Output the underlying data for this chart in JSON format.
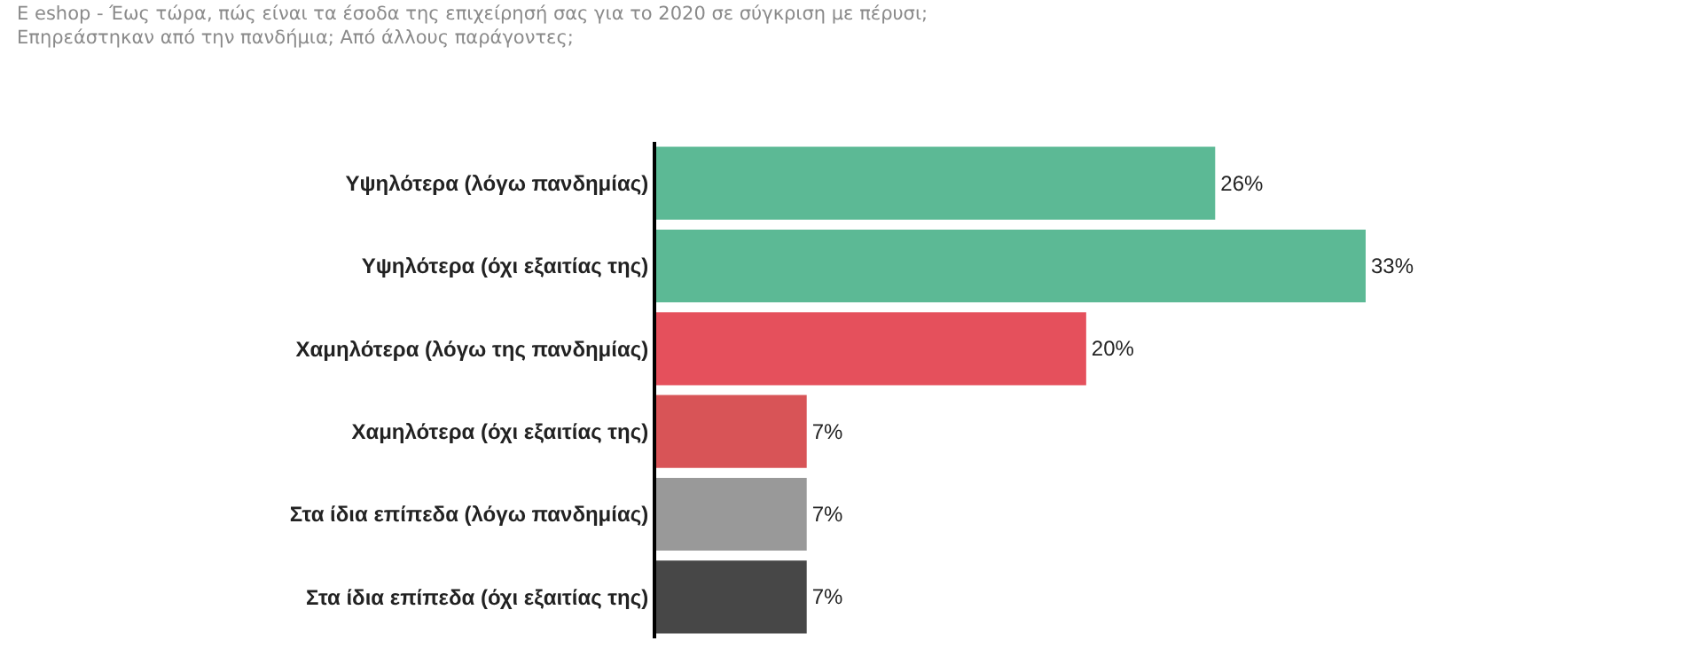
{
  "chart_data": {
    "type": "bar",
    "orientation": "horizontal",
    "title": "E eshop - Έως τώρα, πώς είναι τα έσοδα της επιχείρησή σας για το 2020 σε σύγκριση με πέρυσι;\nΕπηρεάστηκαν από την πανδήμια; Από άλλους παράγοντες;",
    "categories": [
      "Υψηλότερα (λόγω πανδημίας)",
      "Υψηλότερα (όχι εξαιτίας της)",
      "Χαμηλότερα (λόγω της πανδημίας)",
      "Χαμηλότερα (όχι εξαιτίας της)",
      "Στα ίδια επίπεδα (λόγω πανδημίας)",
      "Στα ίδια επίπεδα (όχι εξαιτίας της)"
    ],
    "values": [
      26,
      33,
      20,
      7,
      7,
      7
    ],
    "colors": [
      "#5cb995",
      "#5cb995",
      "#e5505c",
      "#d85457",
      "#999999",
      "#474747"
    ],
    "value_labels": [
      "26%",
      "33%",
      "20%",
      "7%",
      "7%",
      "7%"
    ],
    "grid": false,
    "legend": false
  }
}
